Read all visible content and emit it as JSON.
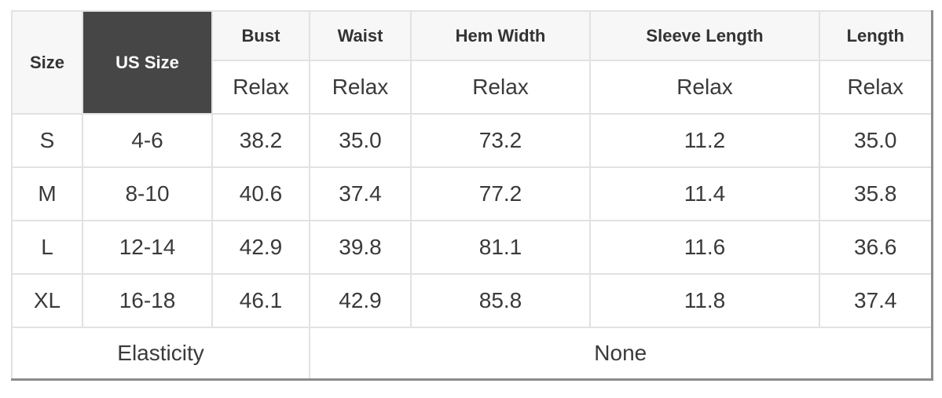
{
  "chart_data": {
    "type": "table",
    "columns": [
      "Size",
      "US Size",
      "Bust",
      "Waist",
      "Hem Width",
      "Sleeve Length",
      "Length"
    ],
    "fit": [
      "Relax",
      "Relax",
      "Relax",
      "Relax",
      "Relax"
    ],
    "rows": [
      [
        "S",
        "4-6",
        "38.2",
        "35.0",
        "73.2",
        "11.2",
        "35.0"
      ],
      [
        "M",
        "8-10",
        "40.6",
        "37.4",
        "77.2",
        "11.4",
        "35.8"
      ],
      [
        "L",
        "12-14",
        "42.9",
        "39.8",
        "81.1",
        "11.6",
        "36.6"
      ],
      [
        "XL",
        "16-18",
        "46.1",
        "42.9",
        "85.8",
        "11.8",
        "37.4"
      ]
    ],
    "footer": [
      "Elasticity",
      "None"
    ]
  },
  "colors": {
    "us_size_bg": "#464646",
    "us_size_text": "#ffffff",
    "header_bg": "#f7f7f7",
    "header_text": "#333333",
    "border_light": "#e2e2e2",
    "border_dark": "#8c8c8c",
    "text": "#3a3a3a",
    "page_bg": "#ffffff"
  }
}
